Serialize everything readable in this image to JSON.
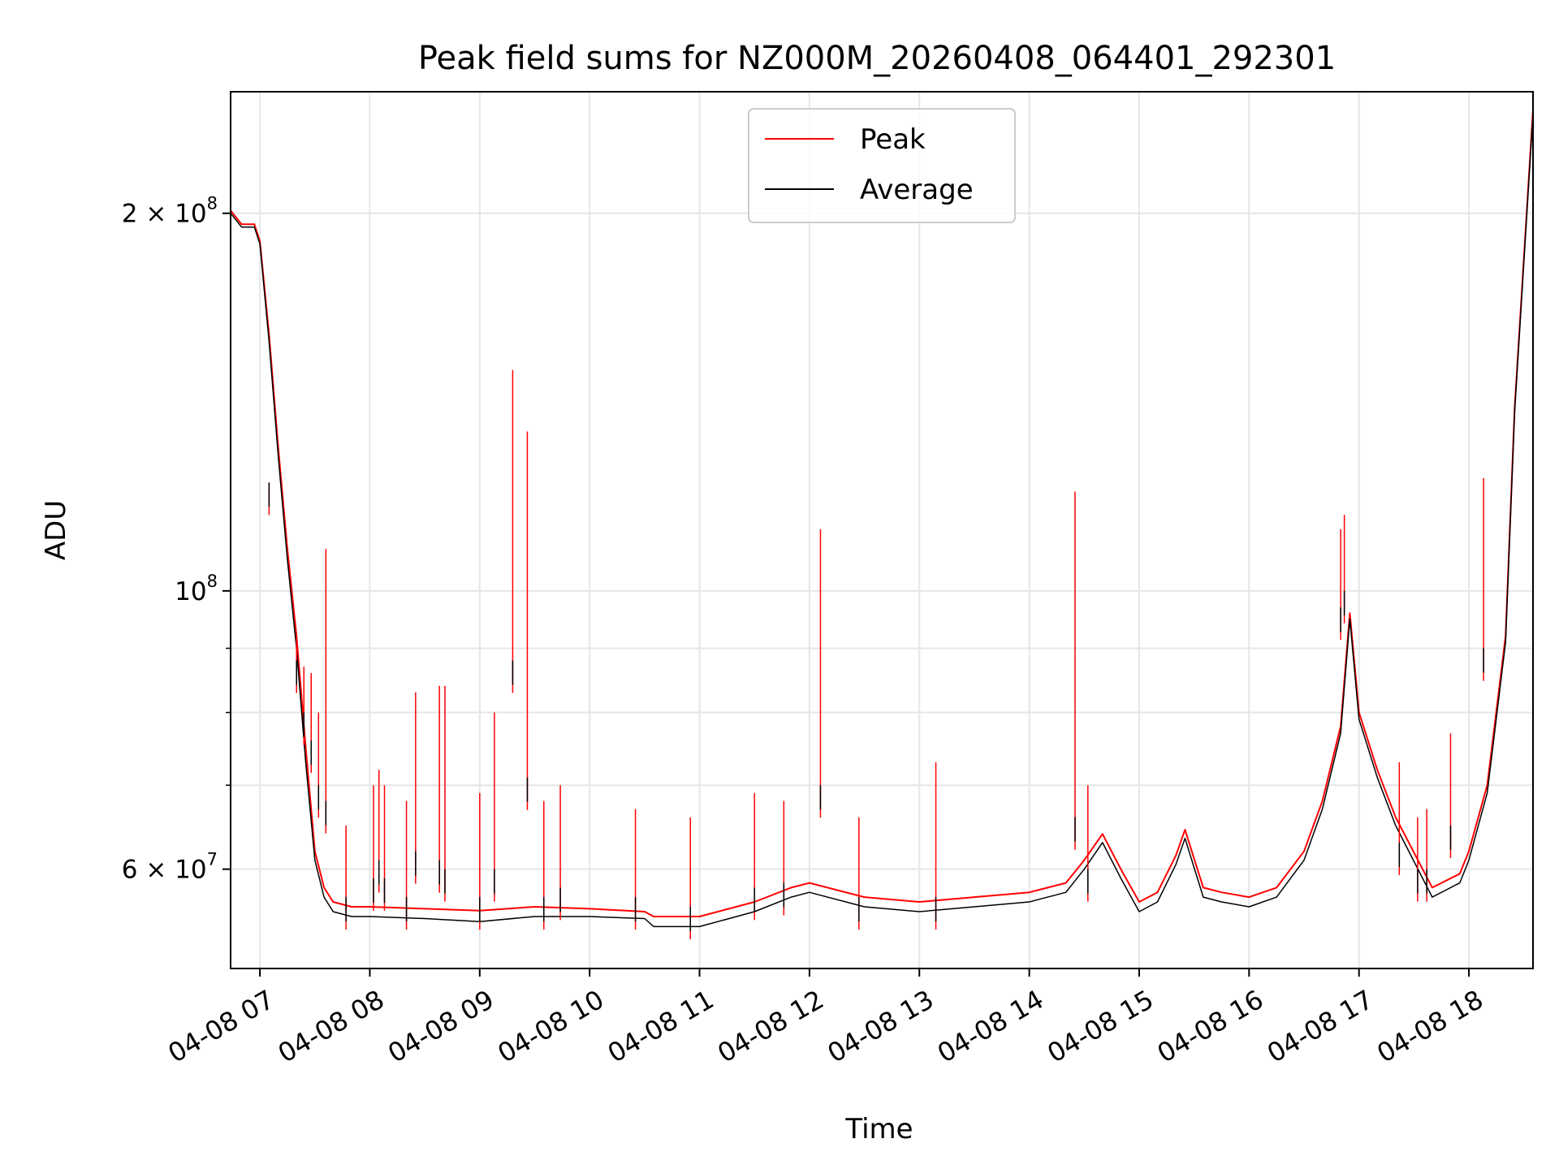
{
  "chart_data": {
    "type": "line",
    "title": "Peak field sums for NZ000M_20260408_064401_292301",
    "xlabel": "Time",
    "ylabel": "ADU",
    "yscale": "log",
    "grid": true,
    "legend_position": "upper center",
    "xlim": [
      "2026-04-08 06:44",
      "2026-04-08 18:35"
    ],
    "ylim": [
      50000000,
      250000000
    ],
    "x_ticks": [
      {
        "t": "2026-04-08 07:00",
        "label": "04-08 07"
      },
      {
        "t": "2026-04-08 08:00",
        "label": "04-08 08"
      },
      {
        "t": "2026-04-08 09:00",
        "label": "04-08 09"
      },
      {
        "t": "2026-04-08 10:00",
        "label": "04-08 10"
      },
      {
        "t": "2026-04-08 11:00",
        "label": "04-08 11"
      },
      {
        "t": "2026-04-08 12:00",
        "label": "04-08 12"
      },
      {
        "t": "2026-04-08 13:00",
        "label": "04-08 13"
      },
      {
        "t": "2026-04-08 14:00",
        "label": "04-08 14"
      },
      {
        "t": "2026-04-08 15:00",
        "label": "04-08 15"
      },
      {
        "t": "2026-04-08 16:00",
        "label": "04-08 16"
      },
      {
        "t": "2026-04-08 17:00",
        "label": "04-08 17"
      },
      {
        "t": "2026-04-08 18:00",
        "label": "04-08 18"
      }
    ],
    "y_ticks": [
      {
        "v": 200000000,
        "base": "2 × 10",
        "exp": "8"
      },
      {
        "v": 100000000,
        "base": "10",
        "exp": "8"
      },
      {
        "v": 60000000,
        "base": "6 × 10",
        "exp": "7"
      }
    ],
    "y_minor_ticks": [
      70000000,
      80000000,
      90000000
    ],
    "series": [
      {
        "name": "Peak",
        "color": "#ff0000",
        "x": [
          "06:44",
          "06:50",
          "06:57",
          "07:00",
          "07:05",
          "07:10",
          "07:15",
          "07:20",
          "07:25",
          "07:30",
          "07:35",
          "07:40",
          "07:50",
          "08:00",
          "08:30",
          "09:00",
          "09:30",
          "10:00",
          "10:30",
          "10:35",
          "11:00",
          "11:30",
          "11:50",
          "12:00",
          "12:30",
          "13:00",
          "13:30",
          "14:00",
          "14:20",
          "14:30",
          "14:40",
          "14:50",
          "15:00",
          "15:10",
          "15:20",
          "15:25",
          "15:35",
          "15:45",
          "16:00",
          "16:15",
          "16:30",
          "16:40",
          "16:50",
          "16:55",
          "17:00",
          "17:10",
          "17:20",
          "17:40",
          "17:55",
          "18:00",
          "18:10",
          "18:20",
          "18:25",
          "18:35"
        ],
        "y": [
          201000000,
          196000000,
          196000000,
          190000000,
          160000000,
          130000000,
          108000000,
          92000000,
          75000000,
          62000000,
          58000000,
          56500000,
          56000000,
          56000000,
          55800000,
          55600000,
          56000000,
          55800000,
          55500000,
          55000000,
          55000000,
          56500000,
          58000000,
          58500000,
          57000000,
          56500000,
          57000000,
          57500000,
          58500000,
          61000000,
          64000000,
          60000000,
          56500000,
          57500000,
          61500000,
          64500000,
          58000000,
          57500000,
          57000000,
          58000000,
          62000000,
          68000000,
          78000000,
          96000000,
          80000000,
          72000000,
          66000000,
          58000000,
          59500000,
          62000000,
          70000000,
          92000000,
          140000000,
          242000000
        ]
      },
      {
        "name": "Average",
        "color": "#000000",
        "x": [
          "06:44",
          "06:50",
          "06:57",
          "07:00",
          "07:05",
          "07:10",
          "07:15",
          "07:20",
          "07:25",
          "07:30",
          "07:35",
          "07:40",
          "07:50",
          "08:00",
          "08:30",
          "09:00",
          "09:30",
          "10:00",
          "10:30",
          "10:35",
          "11:00",
          "11:30",
          "11:50",
          "12:00",
          "12:30",
          "13:00",
          "13:30",
          "14:00",
          "14:20",
          "14:30",
          "14:40",
          "14:50",
          "15:00",
          "15:10",
          "15:20",
          "15:25",
          "15:35",
          "15:45",
          "16:00",
          "16:15",
          "16:30",
          "16:40",
          "16:50",
          "16:55",
          "17:00",
          "17:10",
          "17:20",
          "17:40",
          "17:55",
          "18:00",
          "18:10",
          "18:20",
          "18:25",
          "18:35"
        ],
        "y": [
          200000000,
          195000000,
          195000000,
          189000000,
          158000000,
          128000000,
          106000000,
          90000000,
          73000000,
          61000000,
          57000000,
          55500000,
          55000000,
          55000000,
          54800000,
          54500000,
          55000000,
          55000000,
          54800000,
          54000000,
          54000000,
          55500000,
          57000000,
          57500000,
          56000000,
          55500000,
          56000000,
          56500000,
          57500000,
          60000000,
          63000000,
          59000000,
          55500000,
          56500000,
          60500000,
          63500000,
          57000000,
          56500000,
          56000000,
          57000000,
          61000000,
          67000000,
          77000000,
          95000000,
          79000000,
          71000000,
          65000000,
          57000000,
          58500000,
          61000000,
          69000000,
          91000000,
          139000000,
          240000000
        ]
      }
    ],
    "spikes": [
      {
        "t": "07:05",
        "peak": 122000000,
        "avg": 122000000
      },
      {
        "t": "07:20",
        "peak": 92000000,
        "avg": 88000000
      },
      {
        "t": "07:24",
        "peak": 87000000,
        "avg": 80000000
      },
      {
        "t": "07:28",
        "peak": 86000000,
        "avg": 76000000
      },
      {
        "t": "07:32",
        "peak": 80000000,
        "avg": 70000000
      },
      {
        "t": "07:36",
        "peak": 108000000,
        "avg": 68000000
      },
      {
        "t": "07:47",
        "peak": 65000000,
        "avg": 57000000
      },
      {
        "t": "08:02",
        "peak": 70000000,
        "avg": 59000000
      },
      {
        "t": "08:05",
        "peak": 72000000,
        "avg": 61000000
      },
      {
        "t": "08:08",
        "peak": 70000000,
        "avg": 59000000
      },
      {
        "t": "08:20",
        "peak": 68000000,
        "avg": 57000000
      },
      {
        "t": "08:25",
        "peak": 83000000,
        "avg": 62000000
      },
      {
        "t": "08:38",
        "peak": 84000000,
        "avg": 61000000
      },
      {
        "t": "08:41",
        "peak": 84000000,
        "avg": 60000000
      },
      {
        "t": "09:00",
        "peak": 69000000,
        "avg": 57000000
      },
      {
        "t": "09:08",
        "peak": 80000000,
        "avg": 60000000
      },
      {
        "t": "09:18",
        "peak": 150000000,
        "avg": 88000000
      },
      {
        "t": "09:26",
        "peak": 134000000,
        "avg": 71000000
      },
      {
        "t": "09:35",
        "peak": 68000000,
        "avg": 57000000
      },
      {
        "t": "09:44",
        "peak": 70000000,
        "avg": 58000000
      },
      {
        "t": "10:25",
        "peak": 67000000,
        "avg": 57000000
      },
      {
        "t": "10:55",
        "peak": 66000000,
        "avg": 56000000
      },
      {
        "t": "11:30",
        "peak": 69000000,
        "avg": 58000000
      },
      {
        "t": "11:46",
        "peak": 68000000,
        "avg": 58500000
      },
      {
        "t": "12:06",
        "peak": 112000000,
        "avg": 70000000
      },
      {
        "t": "12:27",
        "peak": 66000000,
        "avg": 57000000
      },
      {
        "t": "13:09",
        "peak": 73000000,
        "avg": 57000000
      },
      {
        "t": "14:25",
        "peak": 120000000,
        "avg": 66000000
      },
      {
        "t": "14:32",
        "peak": 70000000,
        "avg": 60000000
      },
      {
        "t": "16:50",
        "peak": 112000000,
        "avg": 97000000
      },
      {
        "t": "16:52",
        "peak": 115000000,
        "avg": 100000000
      },
      {
        "t": "17:22",
        "peak": 73000000,
        "avg": 63000000
      },
      {
        "t": "17:32",
        "peak": 66000000,
        "avg": 60000000
      },
      {
        "t": "17:37",
        "peak": 67000000,
        "avg": 60000000
      },
      {
        "t": "17:50",
        "peak": 77000000,
        "avg": 65000000
      },
      {
        "t": "18:08",
        "peak": 123000000,
        "avg": 90000000
      }
    ]
  }
}
